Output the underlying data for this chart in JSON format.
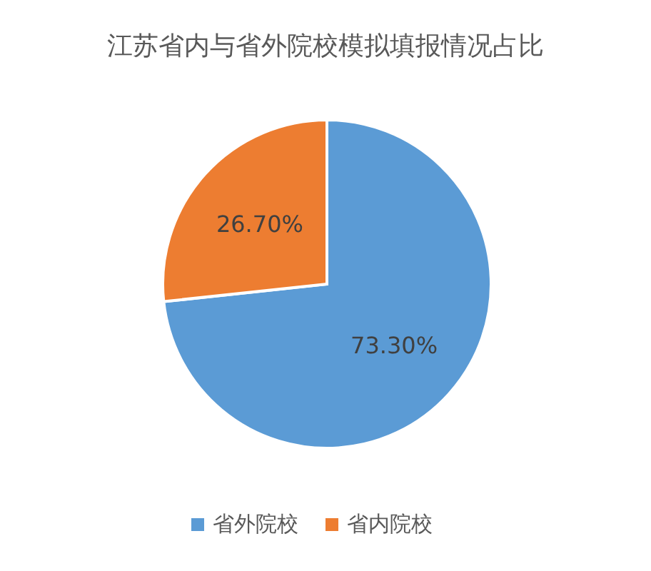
{
  "chart_data": {
    "type": "pie",
    "title": "江苏省内与省外院校模拟填报情况占比",
    "categories": [
      "省外院校",
      "省内院校"
    ],
    "values": [
      73.3,
      26.7
    ],
    "colors": [
      "#5b9bd5",
      "#ed7d31"
    ],
    "value_labels": [
      "73.30%",
      "26.70%"
    ],
    "legend": "bottom"
  }
}
